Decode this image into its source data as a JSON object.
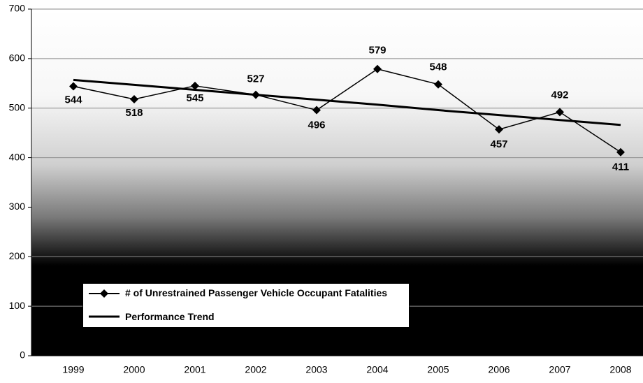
{
  "chart_data": {
    "type": "line",
    "categories": [
      "1999",
      "2000",
      "2001",
      "2002",
      "2003",
      "2004",
      "2005",
      "2006",
      "2007",
      "2008"
    ],
    "series": [
      {
        "name": "# of Unrestrained Passenger Vehicle Occupant Fatalities",
        "color": "#000000",
        "marker": "diamond",
        "values": [
          544,
          518,
          545,
          527,
          496,
          579,
          548,
          457,
          492,
          411
        ]
      },
      {
        "name": "Performance Trend",
        "color": "#000000",
        "values": [
          557,
          547,
          537,
          527,
          517,
          507,
          496,
          486,
          476,
          466
        ]
      }
    ],
    "ylim": [
      0,
      700
    ],
    "yticks": [
      0,
      100,
      200,
      300,
      400,
      500,
      600,
      700
    ],
    "grid": true,
    "data_labels": true
  }
}
